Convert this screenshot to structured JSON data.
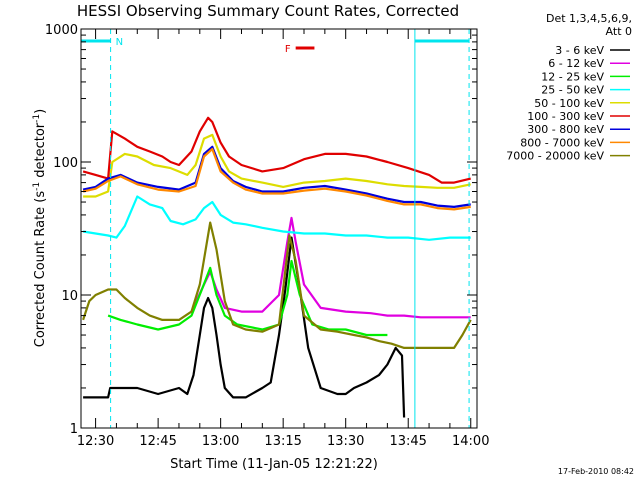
{
  "chart_data": {
    "type": "line",
    "title": "HESSI Observing Summary Count Rates, Corrected",
    "xlabel": "Start Time (11-Jan-05 12:21:22)",
    "ylabel_parts": {
      "pre": "Corrected Count Rate (s",
      "sup1": "-1",
      "mid": " detector",
      "sup2": "-1",
      "post": ")"
    },
    "x_unit": "minutes since 12:00",
    "xlim": [
      26.5,
      121.5
    ],
    "ylim": [
      1,
      1000
    ],
    "yscale": "log",
    "x_ticks": [
      {
        "v": 30,
        "label": "12:30"
      },
      {
        "v": 45,
        "label": "12:45"
      },
      {
        "v": 60,
        "label": "13:00"
      },
      {
        "v": 75,
        "label": "13:15"
      },
      {
        "v": 90,
        "label": "13:30"
      },
      {
        "v": 105,
        "label": "13:45"
      },
      {
        "v": 120,
        "label": "14:00"
      }
    ],
    "y_ticks": [
      {
        "v": 1,
        "label": "1"
      },
      {
        "v": 10,
        "label": "10"
      },
      {
        "v": 100,
        "label": "100"
      },
      {
        "v": 1000,
        "label": "1000"
      }
    ],
    "legend": {
      "header": "Det 1,3,4,5,6,9,",
      "header2": "Att 0"
    },
    "series": [
      {
        "name": "3 - 6 keV",
        "color": "#000000",
        "x": [
          27,
          33,
          33.5,
          40,
          45,
          50,
          52,
          53.5,
          55,
          56,
          57,
          58,
          59,
          60,
          61,
          63,
          66,
          70,
          72,
          74,
          75.5,
          77,
          79,
          81,
          84,
          88,
          90,
          92,
          95,
          98,
          100,
          102,
          103.5,
          104
        ],
        "y": [
          1.7,
          1.7,
          2,
          2,
          1.8,
          2,
          1.8,
          2.5,
          5,
          8,
          9.5,
          8,
          5,
          3,
          2,
          1.7,
          1.7,
          2,
          2.2,
          5,
          11,
          27,
          11,
          4,
          2,
          1.8,
          1.8,
          2,
          2.2,
          2.5,
          3,
          4,
          3.5,
          1.2
        ]
      },
      {
        "name": "6 - 12 keV",
        "color": "#e000e0",
        "x": [
          53,
          56,
          57.5,
          59,
          61,
          65,
          70,
          74,
          76,
          77,
          78,
          80,
          84,
          90,
          96,
          100,
          104,
          108,
          112,
          116,
          120
        ],
        "y": [
          7.5,
          12,
          15,
          11,
          8,
          7.5,
          7.5,
          10,
          25,
          38,
          25,
          12,
          8,
          7.5,
          7.3,
          7,
          7,
          6.8,
          6.8,
          6.8,
          6.8
        ]
      },
      {
        "name": "12 - 25 keV",
        "color": "#00ee00",
        "x": [
          33,
          36,
          40,
          45,
          50,
          53,
          55.5,
          57.5,
          59,
          61,
          64,
          70,
          74,
          76,
          77,
          79,
          82,
          86,
          90,
          95,
          100
        ],
        "y": [
          7,
          6.5,
          6,
          5.5,
          6,
          7,
          11,
          16,
          10,
          7,
          6,
          5.5,
          6,
          10,
          18,
          10,
          6,
          5.5,
          5.5,
          5,
          5
        ]
      },
      {
        "name": "25 - 50 keV",
        "color": "#00ffff",
        "x": [
          27,
          30,
          33,
          35,
          37,
          40,
          43,
          46,
          48,
          51,
          54,
          56,
          58,
          60,
          63,
          66,
          70,
          75,
          80,
          85,
          90,
          95,
          100,
          105,
          110,
          115,
          120
        ],
        "y": [
          30,
          29,
          28,
          27,
          33,
          55,
          48,
          45,
          36,
          34,
          37,
          45,
          50,
          40,
          35,
          34,
          32,
          30,
          29,
          29,
          28,
          28,
          27,
          27,
          26,
          27,
          27
        ]
      },
      {
        "name": "50 - 100 keV",
        "color": "#dddd00",
        "x": [
          27,
          30,
          33,
          34,
          37,
          40,
          44,
          48,
          52,
          54,
          56,
          58,
          60,
          62,
          65,
          70,
          75,
          80,
          85,
          90,
          95,
          100,
          104,
          108,
          112,
          116,
          120
        ],
        "y": [
          55,
          55,
          60,
          100,
          115,
          110,
          95,
          90,
          80,
          95,
          150,
          160,
          110,
          85,
          75,
          70,
          65,
          70,
          72,
          75,
          72,
          68,
          66,
          65,
          64,
          64,
          68
        ]
      },
      {
        "name": "100 - 300 keV",
        "color": "#e00000",
        "x": [
          27,
          30,
          33,
          34,
          37,
          40,
          43,
          46,
          48,
          50,
          53,
          55,
          57,
          58,
          60,
          62,
          65,
          70,
          75,
          80,
          85,
          90,
          95,
          100,
          105,
          110,
          113,
          116,
          120
        ],
        "y": [
          85,
          80,
          75,
          170,
          150,
          130,
          120,
          110,
          100,
          95,
          120,
          170,
          215,
          200,
          140,
          110,
          95,
          85,
          90,
          105,
          115,
          115,
          110,
          100,
          90,
          80,
          70,
          70,
          75
        ]
      },
      {
        "name": "300 - 800 keV",
        "color": "#0000dd",
        "x": [
          27,
          30,
          33,
          36,
          40,
          45,
          50,
          54,
          56,
          58,
          60,
          63,
          66,
          70,
          75,
          80,
          85,
          90,
          95,
          100,
          104,
          108,
          112,
          116,
          120
        ],
        "y": [
          62,
          65,
          75,
          80,
          70,
          65,
          62,
          70,
          115,
          130,
          90,
          72,
          65,
          60,
          60,
          64,
          66,
          62,
          58,
          53,
          50,
          50,
          47,
          46,
          48
        ]
      },
      {
        "name": "800 - 7000 keV",
        "color": "#ff8800",
        "x": [
          27,
          30,
          33,
          36,
          40,
          45,
          50,
          54,
          56,
          58,
          60,
          63,
          66,
          70,
          75,
          80,
          85,
          90,
          95,
          100,
          104,
          108,
          112,
          116,
          120
        ],
        "y": [
          60,
          63,
          72,
          78,
          68,
          62,
          60,
          66,
          110,
          125,
          85,
          70,
          62,
          58,
          58,
          61,
          63,
          60,
          56,
          51,
          48,
          48,
          45,
          44,
          46
        ]
      },
      {
        "name": "7000 - 20000 keV",
        "color": "#808000",
        "x": [
          27,
          28.5,
          30,
          33,
          35,
          37,
          40,
          43,
          46,
          50,
          53,
          55,
          57.5,
          59,
          61,
          63,
          66,
          70,
          74,
          76.5,
          78,
          80,
          84,
          88,
          92,
          95,
          98,
          101,
          104,
          108,
          112,
          116,
          118,
          120
        ],
        "y": [
          6.5,
          9,
          10,
          11,
          11,
          9.5,
          8,
          7,
          6.5,
          6.5,
          7.5,
          12,
          35,
          22,
          9,
          6,
          5.5,
          5.3,
          6,
          28,
          18,
          7,
          5.5,
          5.3,
          5,
          4.8,
          4.5,
          4.3,
          4,
          4,
          4,
          4,
          5,
          6.5
        ]
      }
    ],
    "annotations": {
      "night_label": "N",
      "flare_label": "F"
    },
    "footer": "17-Feb-2010 08:42"
  },
  "markers": {
    "night_interval": [
      26.5,
      33.6
    ],
    "night_interval2": [
      106.6,
      119.6
    ],
    "saa_edges": [
      106.6
    ],
    "flare_interval": [
      78,
      82.5
    ]
  }
}
